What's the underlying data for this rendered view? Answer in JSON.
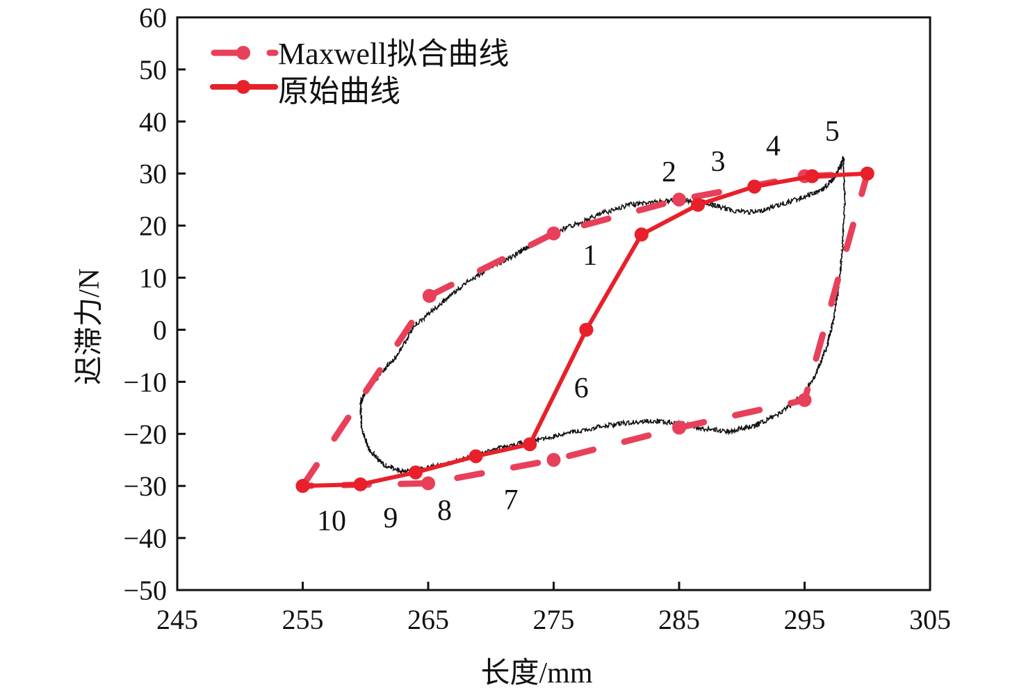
{
  "chart_data": {
    "type": "line",
    "title": "",
    "xlabel": "长度/mm",
    "ylabel": "迟滞力/N",
    "xlim": [
      245,
      305
    ],
    "ylim": [
      -50,
      60
    ],
    "xticks": [
      245,
      255,
      265,
      275,
      285,
      295,
      305
    ],
    "yticks": [
      60,
      50,
      40,
      30,
      20,
      10,
      0,
      -10,
      -20,
      -30,
      -40,
      -50
    ],
    "grid": false,
    "legend_position": "top-left",
    "colors": {
      "maxwell": "#e8405a",
      "original": "#e8202a",
      "measured": "#111111",
      "axis": "#111111"
    },
    "series": [
      {
        "name": "Maxwell拟合曲线",
        "style": "dashed-with-markers",
        "x": [
          255,
          265.1,
          275,
          285,
          295,
          300,
          295,
          285,
          275,
          265,
          255
        ],
        "y": [
          -30,
          6.5,
          18.5,
          25,
          29.5,
          30,
          -13.5,
          -18.8,
          -25,
          -29.5,
          -30
        ]
      },
      {
        "name": "原始曲线",
        "style": "solid-with-markers",
        "x": [
          277.6,
          282,
          286.5,
          291,
          295.6,
          300,
          295.6,
          291,
          286.5,
          282,
          277.6,
          273.1,
          268.8,
          264,
          259.6,
          255
        ],
        "y": [
          0,
          18.3,
          24,
          27.5,
          29.5,
          30,
          29.5,
          27.5,
          24,
          18.3,
          0,
          -22,
          -24.3,
          -27.4,
          -29.7,
          -30
        ]
      },
      {
        "name": "measured-hysteresis-loop",
        "style": "noisy-thin-line",
        "x": [
          273,
          275,
          277,
          279,
          281,
          283,
          285,
          287,
          289,
          291,
          293,
          295,
          296.5,
          297.3,
          297.8,
          298.1,
          298.2,
          298,
          297.7,
          297.3,
          296.8,
          296,
          295,
          293,
          291,
          289,
          287,
          285,
          283,
          281,
          279,
          277,
          275,
          273,
          271,
          269,
          267,
          265,
          263,
          261.5,
          260.3,
          259.7,
          259.6,
          260,
          261,
          262.5,
          264,
          266,
          268,
          270,
          272,
          273
        ],
        "y": [
          16,
          18.5,
          20.5,
          22.5,
          24,
          24.5,
          25,
          24.5,
          23,
          22.5,
          24,
          25.5,
          27,
          29,
          31,
          33,
          25,
          15,
          8,
          2,
          -3,
          -8,
          -12.5,
          -16,
          -18.5,
          -19.5,
          -19,
          -18,
          -17.5,
          -17.8,
          -18.5,
          -19.5,
          -20.5,
          -21.5,
          -22.5,
          -24,
          -25.5,
          -26.5,
          -27.2,
          -26,
          -23,
          -19,
          -14,
          -12,
          -9,
          -5,
          1,
          5,
          9,
          12,
          14.5,
          16
        ]
      }
    ],
    "legend": [
      {
        "label": "Maxwell拟合曲线",
        "style": "dashed"
      },
      {
        "label": "原始曲线",
        "style": "solid"
      }
    ],
    "annotations": [
      {
        "text": "1",
        "x": 277.9,
        "y": 12.5
      },
      {
        "text": "2",
        "x": 284.2,
        "y": 28.5
      },
      {
        "text": "3",
        "x": 288.1,
        "y": 30.5
      },
      {
        "text": "4",
        "x": 292.5,
        "y": 33.5
      },
      {
        "text": "5",
        "x": 297.2,
        "y": 36.3
      },
      {
        "text": "6",
        "x": 277.2,
        "y": -13
      },
      {
        "text": "7",
        "x": 271.6,
        "y": -34.5
      },
      {
        "text": "8",
        "x": 266.3,
        "y": -36.5
      },
      {
        "text": "9",
        "x": 262,
        "y": -38
      },
      {
        "text": "10",
        "x": 257.3,
        "y": -38.5
      }
    ]
  }
}
